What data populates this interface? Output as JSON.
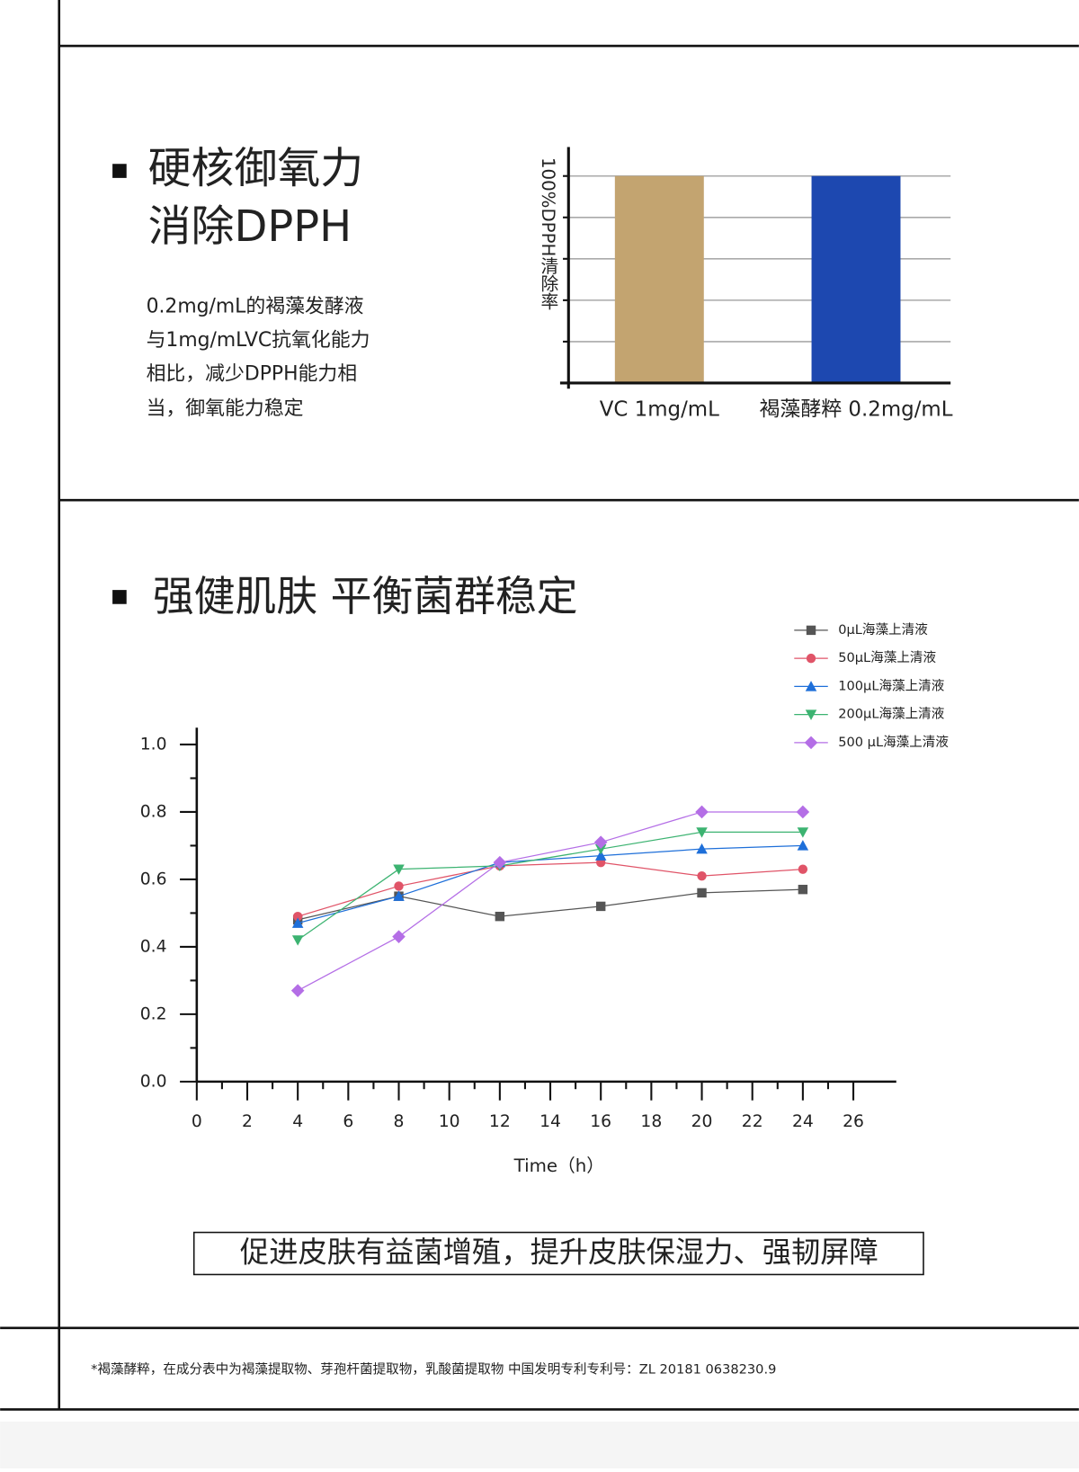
{
  "section1": {
    "title_line1": "硬核御氧力",
    "title_line2": "消除DPPH",
    "description": [
      "0.2mg/mL的褐藻发酵液",
      "与1mg/mLVC抗氧化能力",
      "相比，减少DPPH能力相",
      "当，御氧能力稳定"
    ]
  },
  "section2": {
    "title": "强健肌肤 平衡菌群稳定",
    "tagline": "促进皮肤有益菌增殖，提升皮肤保湿力、强韧屏障"
  },
  "footnote": "*褐藻酵粹，在成分表中为褐藻提取物、芽孢杆菌提取物，乳酸菌提取物 中国发明专利专利号：ZL 20181 0638230.9",
  "chart_data": [
    {
      "type": "bar",
      "ylabel": "100%DPPH清除率",
      "categories": [
        "VC 1mg/mL",
        "褐藻酵粹 0.2mg/mL"
      ],
      "values": [
        100,
        100
      ],
      "colors": [
        "#c3a470",
        "#1d48b0"
      ],
      "ylim": [
        0,
        114
      ],
      "gridlines": [
        20,
        40,
        60,
        80,
        100
      ],
      "grid": true
    },
    {
      "type": "line",
      "xlabel": "Time（h）",
      "x": [
        4,
        8,
        12,
        16,
        20,
        24
      ],
      "series": [
        {
          "name": "0μL海藻上清液",
          "color": "#555555",
          "marker": "square",
          "values": [
            0.48,
            0.55,
            0.49,
            0.52,
            0.56,
            0.57
          ]
        },
        {
          "name": "50μL海藻上清液",
          "color": "#e05468",
          "marker": "circle",
          "values": [
            0.49,
            0.58,
            0.64,
            0.65,
            0.61,
            0.63
          ]
        },
        {
          "name": "100μL海藻上清液",
          "color": "#1e6fd9",
          "marker": "triangle",
          "values": [
            0.47,
            0.55,
            0.65,
            0.67,
            0.69,
            0.7
          ]
        },
        {
          "name": "200μL海藻上清液",
          "color": "#3cb371",
          "marker": "triangle-down",
          "values": [
            0.42,
            0.63,
            0.64,
            0.69,
            0.74,
            0.74
          ]
        },
        {
          "name": "500 μL海藻上清液",
          "color": "#b46ee6",
          "marker": "diamond",
          "values": [
            0.27,
            0.43,
            0.65,
            0.71,
            0.8,
            0.8
          ]
        }
      ],
      "xlim": [
        0,
        27.7
      ],
      "xticks": [
        0,
        2,
        4,
        6,
        8,
        10,
        12,
        14,
        16,
        18,
        20,
        22,
        24,
        26
      ],
      "xminorticks": [
        1,
        3,
        5,
        7,
        9,
        11,
        13,
        15,
        17,
        19,
        21,
        23,
        25
      ],
      "ylim": [
        0,
        1.05
      ],
      "yticks": [
        {
          "value": 0,
          "label": "0.0"
        },
        0.2,
        0.4,
        0.6,
        0.8,
        {
          "value": 1,
          "label": "1.0"
        }
      ],
      "yminorticks": [
        0.1,
        0.3,
        0.5,
        0.7,
        0.9
      ],
      "legend": "upper right"
    }
  ]
}
